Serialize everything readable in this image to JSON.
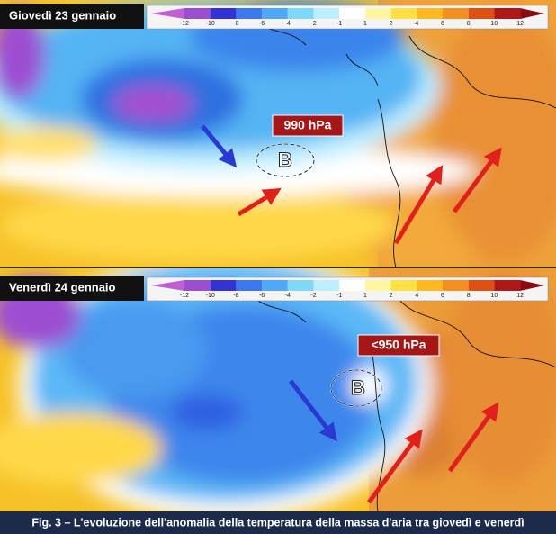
{
  "colorbar_ticks": [
    -12,
    -10,
    -8,
    -6,
    -4,
    -2,
    -1,
    1,
    2,
    4,
    6,
    8,
    10,
    12
  ],
  "panels": [
    {
      "date": "Giovedì 23 gennaio",
      "pressure": "990 hPa",
      "low": "B"
    },
    {
      "date": "Venerdì 24 gennaio",
      "pressure": "<950 hPa",
      "low": "B"
    }
  ],
  "caption": "Fig. 3 – L'evoluzione dell'anomalia della temperatura della massa d'aria tra giovedì e venerdì"
}
